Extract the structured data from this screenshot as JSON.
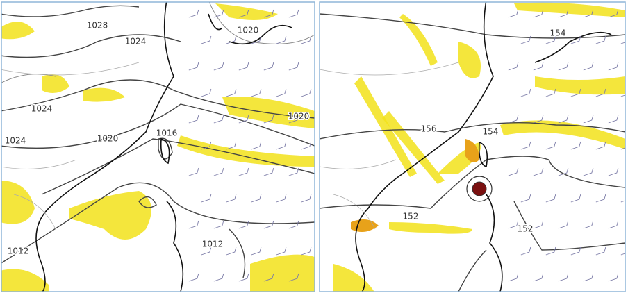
{
  "panels": [
    {
      "labels": [
        "1028",
        "1024",
        "1020",
        "1024",
        "1020",
        "1024",
        "1020",
        "1016",
        "1012",
        "1012"
      ]
    },
    {
      "labels": [
        "154",
        "156",
        "154",
        "152",
        "152"
      ]
    }
  ]
}
